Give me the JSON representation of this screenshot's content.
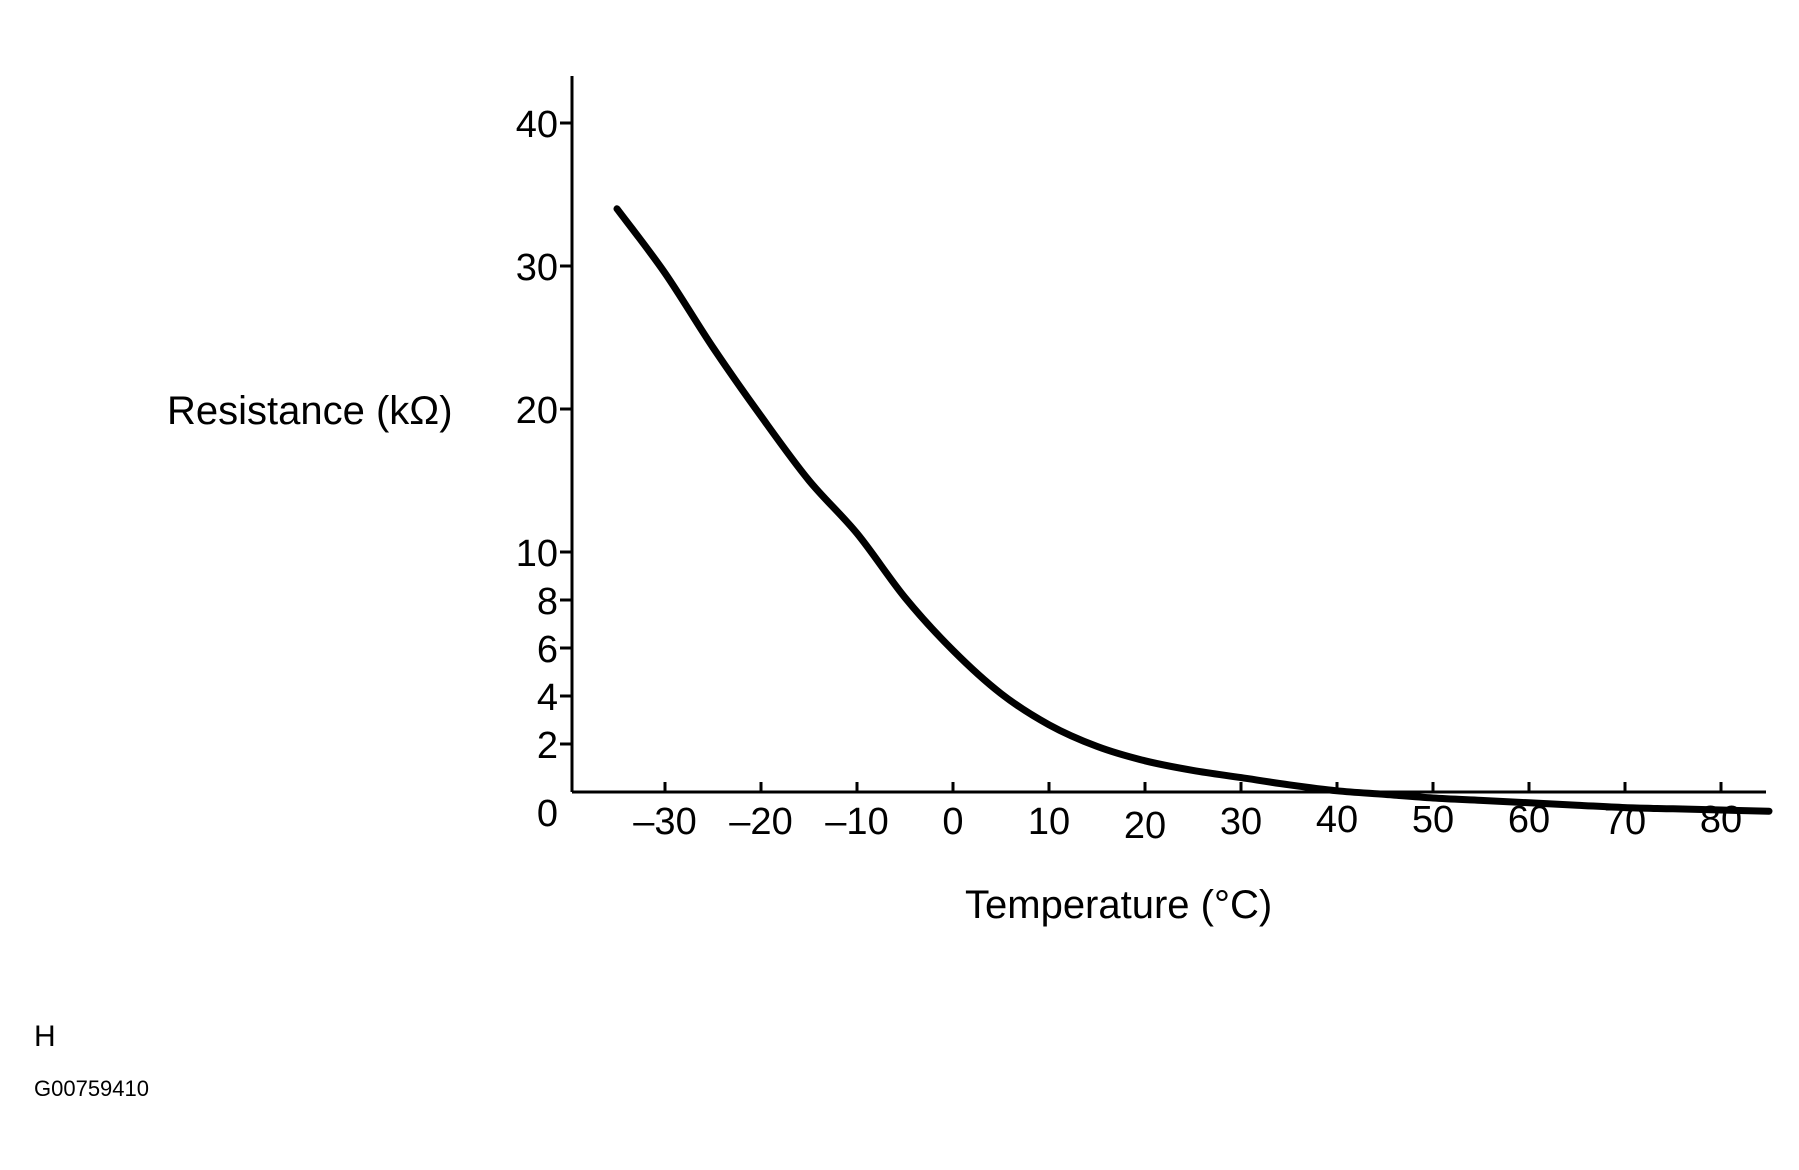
{
  "chart_data": {
    "type": "line",
    "xlabel": "Temperature (°C)",
    "ylabel": "Resistance (kΩ)",
    "xlim": [
      -40,
      85
    ],
    "ylim": [
      0,
      40
    ],
    "x_ticks": [
      -30,
      -20,
      -10,
      0,
      10,
      20,
      30,
      40,
      50,
      60,
      70,
      80
    ],
    "x_tick_labels": [
      "–30",
      "–20",
      "–10",
      "0",
      "10",
      "20",
      "30",
      "40",
      "50",
      "60",
      "70",
      "80"
    ],
    "y_ticks": [
      0,
      2,
      4,
      6,
      8,
      10,
      20,
      30,
      40
    ],
    "y_tick_labels": [
      "0",
      "2",
      "4",
      "6",
      "8",
      "10",
      "20",
      "30",
      "40"
    ],
    "grid": false,
    "series": [
      {
        "x": [
          -35,
          -30,
          -25,
          -20,
          -15,
          -10,
          -5,
          0,
          5,
          10,
          15,
          20,
          25,
          30,
          35,
          40,
          45,
          50,
          55,
          60,
          65,
          70,
          75,
          80,
          85
        ],
        "y": [
          34.0,
          29.5,
          24.3,
          19.5,
          15.0,
          11.3,
          8.1,
          5.9,
          4.1,
          2.8,
          1.9,
          1.3,
          0.9,
          0.6,
          0.3,
          0.05,
          -0.1,
          -0.25,
          -0.35,
          -0.45,
          -0.55,
          -0.65,
          -0.7,
          -0.75,
          -0.8
        ]
      }
    ],
    "line_color": "#000000"
  },
  "footer": {
    "letter": "H",
    "code": "G00759410"
  }
}
